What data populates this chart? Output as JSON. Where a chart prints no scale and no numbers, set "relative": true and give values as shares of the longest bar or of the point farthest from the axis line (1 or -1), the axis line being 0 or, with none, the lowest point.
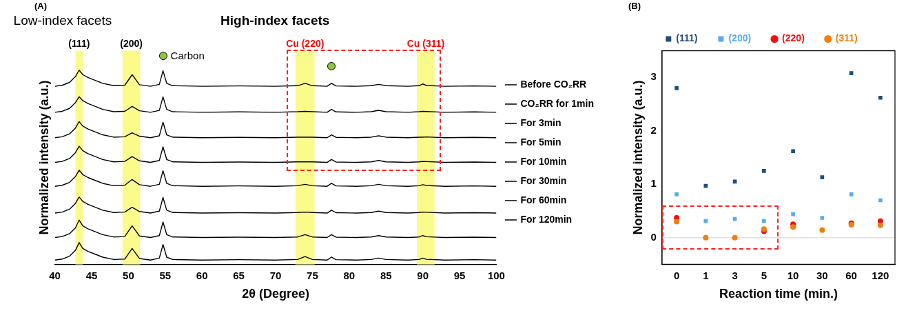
{
  "chart_data": [
    {
      "type": "line",
      "title": "(A)",
      "xlabel": "2θ (Degree)",
      "ylabel": "Normalized intensity (a.u.)",
      "relative": true,
      "marker": "none",
      "legend": "right",
      "xlim": [
        40,
        100
      ],
      "xticks": [
        40,
        45,
        50,
        55,
        60,
        65,
        70,
        75,
        80,
        85,
        90,
        95,
        100
      ],
      "x": [
        40,
        41,
        42,
        42.8,
        43.3,
        43.8,
        44.5,
        45.5,
        46.5,
        48,
        49.5,
        50.5,
        51.5,
        53,
        54.2,
        54.7,
        55.2,
        56,
        60,
        65,
        70,
        73,
        74,
        75,
        77,
        77.6,
        78.2,
        81,
        83,
        84,
        85,
        88,
        89.5,
        90,
        90.5,
        93,
        97,
        100
      ],
      "bands": [
        {
          "axis": "x",
          "from": 42.8,
          "to": 43.8,
          "label": "(111)",
          "color": "#fbfb8c"
        },
        {
          "axis": "x",
          "from": 49.2,
          "to": 51.6,
          "label": "(200)",
          "color": "#fbfb8c"
        },
        {
          "axis": "x",
          "from": 72.7,
          "to": 75.3,
          "label": "Cu (220)",
          "color": "#fbfb8c"
        },
        {
          "axis": "x",
          "from": 89.2,
          "to": 91.6,
          "label": "Cu (311)",
          "color": "#fbfb8c"
        }
      ],
      "annotations": [
        "Low-index facets",
        "High-index facets",
        "Carbon"
      ],
      "series": [
        {
          "name": "Before CO₂RR",
          "color": "#000000",
          "values": [
            0.917,
            0.922,
            0.937,
            0.967,
            1,
            0.977,
            0.962,
            0.947,
            0.932,
            0.92,
            0.922,
            0.977,
            0.925,
            0.917,
            0.927,
            0.997,
            0.932,
            0.92,
            0.917,
            0.919,
            0.917,
            0.92,
            0.932,
            0.92,
            0.917,
            0.932,
            0.919,
            0.917,
            0.92,
            0.927,
            0.92,
            0.917,
            0.92,
            0.929,
            0.921,
            0.917,
            0.919,
            0.917
          ]
        },
        {
          "name": "CO₂RR for 1min",
          "color": "#000000",
          "values": [
            0.783,
            0.788,
            0.803,
            0.833,
            0.863,
            0.843,
            0.828,
            0.813,
            0.798,
            0.786,
            0.788,
            0.813,
            0.791,
            0.783,
            0.793,
            0.863,
            0.798,
            0.786,
            0.783,
            0.785,
            0.783,
            0.786,
            0.788,
            0.786,
            0.783,
            0.798,
            0.785,
            0.783,
            0.786,
            0.793,
            0.786,
            0.783,
            0.786,
            0.788,
            0.787,
            0.783,
            0.785,
            0.783
          ]
        },
        {
          "name": "For 3min",
          "color": "#000000",
          "values": [
            0.652,
            0.657,
            0.672,
            0.702,
            0.735,
            0.712,
            0.697,
            0.682,
            0.667,
            0.655,
            0.657,
            0.677,
            0.66,
            0.652,
            0.662,
            0.732,
            0.667,
            0.655,
            0.652,
            0.654,
            0.652,
            0.655,
            0.655,
            0.655,
            0.652,
            0.667,
            0.654,
            0.652,
            0.655,
            0.662,
            0.655,
            0.652,
            0.655,
            0.655,
            0.656,
            0.652,
            0.654,
            0.652
          ]
        },
        {
          "name": "For 5min",
          "color": "#000000",
          "values": [
            0.525,
            0.53,
            0.545,
            0.575,
            0.608,
            0.585,
            0.57,
            0.555,
            0.54,
            0.528,
            0.53,
            0.555,
            0.533,
            0.525,
            0.535,
            0.605,
            0.54,
            0.528,
            0.525,
            0.527,
            0.525,
            0.528,
            0.528,
            0.528,
            0.525,
            0.54,
            0.527,
            0.525,
            0.528,
            0.535,
            0.528,
            0.525,
            0.528,
            0.53,
            0.529,
            0.525,
            0.527,
            0.525
          ]
        },
        {
          "name": "For 10min",
          "color": "#000000",
          "values": [
            0.402,
            0.407,
            0.422,
            0.452,
            0.485,
            0.462,
            0.447,
            0.432,
            0.417,
            0.405,
            0.407,
            0.437,
            0.41,
            0.402,
            0.412,
            0.482,
            0.417,
            0.405,
            0.402,
            0.404,
            0.402,
            0.405,
            0.412,
            0.405,
            0.402,
            0.417,
            0.404,
            0.402,
            0.405,
            0.412,
            0.405,
            0.402,
            0.405,
            0.41,
            0.406,
            0.402,
            0.404,
            0.402
          ]
        },
        {
          "name": "For 30min",
          "color": "#000000",
          "values": [
            0.264,
            0.269,
            0.284,
            0.314,
            0.347,
            0.324,
            0.309,
            0.294,
            0.279,
            0.267,
            0.269,
            0.294,
            0.272,
            0.264,
            0.274,
            0.344,
            0.279,
            0.267,
            0.264,
            0.266,
            0.264,
            0.267,
            0.269,
            0.267,
            0.264,
            0.279,
            0.266,
            0.264,
            0.267,
            0.274,
            0.267,
            0.264,
            0.267,
            0.269,
            0.268,
            0.264,
            0.266,
            0.264
          ]
        },
        {
          "name": "For 60min",
          "color": "#000000",
          "values": [
            0.138,
            0.143,
            0.158,
            0.188,
            0.228,
            0.198,
            0.183,
            0.168,
            0.153,
            0.141,
            0.143,
            0.198,
            0.146,
            0.138,
            0.148,
            0.218,
            0.153,
            0.141,
            0.138,
            0.14,
            0.138,
            0.141,
            0.153,
            0.141,
            0.138,
            0.153,
            0.14,
            0.138,
            0.141,
            0.148,
            0.141,
            0.138,
            0.141,
            0.148,
            0.142,
            0.138,
            0.14,
            0.138
          ]
        },
        {
          "name": "For 120min",
          "color": "#000000",
          "values": [
            0.022,
            0.027,
            0.042,
            0.072,
            0.112,
            0.082,
            0.067,
            0.052,
            0.037,
            0.025,
            0.027,
            0.082,
            0.03,
            0.022,
            0.032,
            0.102,
            0.037,
            0.025,
            0.022,
            0.024,
            0.022,
            0.025,
            0.04,
            0.025,
            0.022,
            0.037,
            0.024,
            0.022,
            0.025,
            0.032,
            0.025,
            0.022,
            0.025,
            0.032,
            0.026,
            0.022,
            0.024,
            0.022
          ]
        }
      ]
    },
    {
      "type": "scatter",
      "title": "(B)",
      "xlabel": "Reaction time (min.)",
      "ylabel": "Normalized intensity (a.u.)",
      "legend": "top",
      "categories": [
        "0",
        "1",
        "3",
        "5",
        "10",
        "30",
        "60",
        "120"
      ],
      "ylim": [
        -0.5,
        3.5
      ],
      "yticks": [
        0,
        1,
        2,
        3
      ],
      "ref_lines": [
        {
          "axis": "y",
          "value": 0,
          "color": "#e6dcef"
        }
      ],
      "series": [
        {
          "name": "(111)",
          "color": "#1f4e79",
          "marker": "square",
          "values": [
            2.8,
            0.97,
            1.05,
            1.25,
            1.62,
            1.13,
            3.08,
            2.62
          ]
        },
        {
          "name": "(200)",
          "color": "#5aaaf0",
          "marker": "square",
          "values": [
            0.81,
            0.31,
            0.35,
            0.31,
            0.44,
            0.37,
            0.81,
            0.7
          ]
        },
        {
          "name": "(220)",
          "color": "#f01010",
          "marker": "circle",
          "values": [
            0.37,
            null,
            null,
            0.12,
            0.25,
            null,
            0.27,
            0.31
          ]
        },
        {
          "name": "(311)",
          "color": "#f07f10",
          "marker": "circle",
          "values": [
            0.3,
            0.0,
            0.0,
            0.16,
            0.2,
            0.14,
            0.24,
            0.23
          ]
        }
      ]
    }
  ]
}
